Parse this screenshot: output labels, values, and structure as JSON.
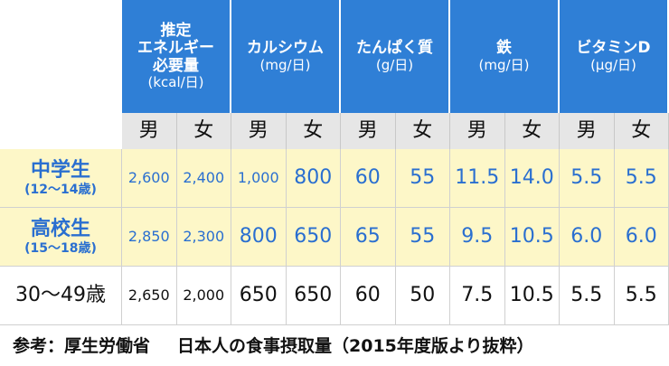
{
  "header": {
    "groups": [
      {
        "title": [
          "推定",
          "エネルギー",
          "必要量"
        ],
        "unit": "(kcal/日)"
      },
      {
        "title": [
          "カルシウム"
        ],
        "unit": "(mg/日)"
      },
      {
        "title": [
          "たんぱく質"
        ],
        "unit": "(g/日)"
      },
      {
        "title": [
          "鉄"
        ],
        "unit": "(mg/日)"
      },
      {
        "title": [
          "ビタミンD"
        ],
        "unit": "(μg/日)"
      }
    ],
    "sexes": [
      "男",
      "女",
      "男",
      "女",
      "男",
      "女",
      "男",
      "女",
      "男",
      "女"
    ]
  },
  "rows": [
    {
      "label": "中学生",
      "sublabel": "(12〜14歳)",
      "cells": [
        "2,600",
        "2,400",
        "1,000",
        "800",
        "60",
        "55",
        "11.5",
        "14.0",
        "5.5",
        "5.5"
      ]
    },
    {
      "label": "高校生",
      "sublabel": "(15〜18歳)",
      "cells": [
        "2,850",
        "2,300",
        "800",
        "650",
        "65",
        "55",
        "9.5",
        "10.5",
        "6.0",
        "6.0"
      ]
    },
    {
      "label": "30〜49歳",
      "cells": [
        "2,650",
        "2,000",
        "650",
        "650",
        "60",
        "50",
        "7.5",
        "10.5",
        "5.5",
        "5.5"
      ]
    }
  ],
  "footer": {
    "source": "参考：厚生労働省",
    "note": "日本人の食事摂取量（2015年度版より抜粋）"
  }
}
